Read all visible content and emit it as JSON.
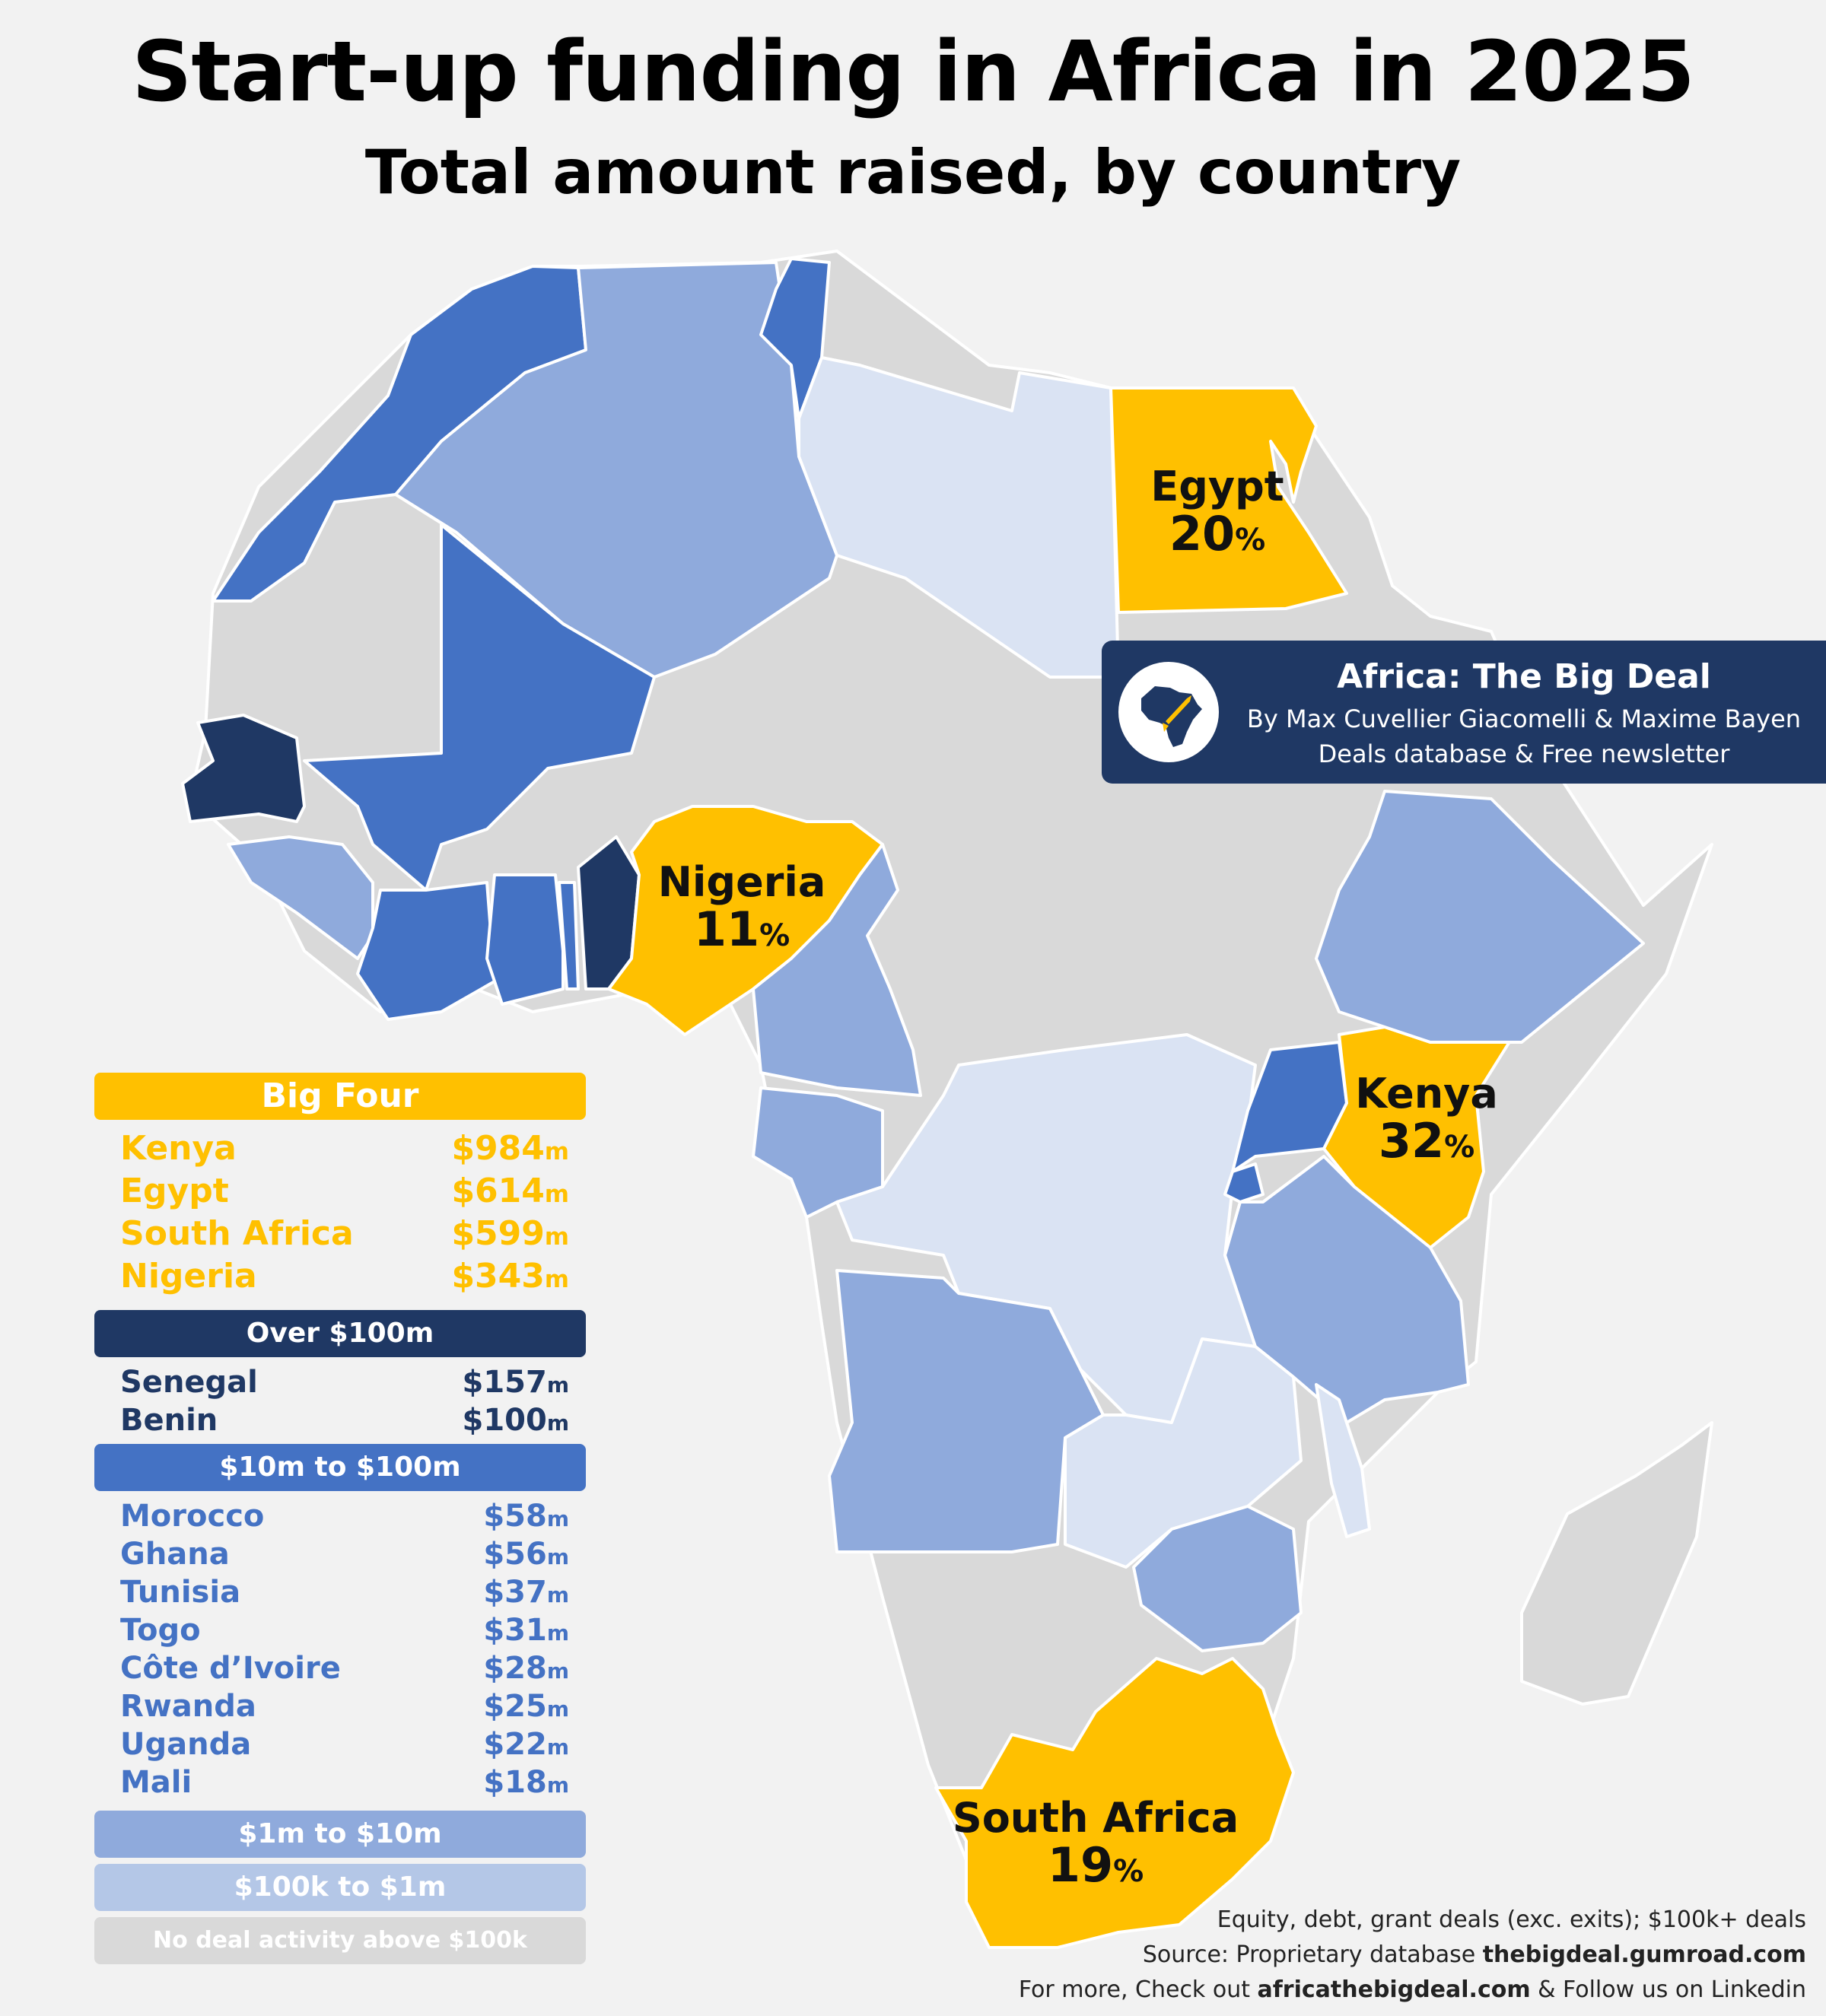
{
  "title": "Start-up funding in Africa in 2025",
  "subtitle": "Total amount raised, by country",
  "colors": {
    "big_four": "#ffc000",
    "over_100m": "#1f3864",
    "10m_100m": "#4472c4",
    "1m_10m": "#8faadc",
    "100k_1m": "#dae3f3",
    "none": "#d9d9d9",
    "background": "#f2f2f2"
  },
  "map_labels": {
    "egypt": {
      "name": "Egypt",
      "share": "20",
      "unit": "%"
    },
    "nigeria": {
      "name": "Nigeria",
      "share": "11",
      "unit": "%"
    },
    "kenya": {
      "name": "Kenya",
      "share": "32",
      "unit": "%"
    },
    "south_africa": {
      "name": "South Africa",
      "share": "19",
      "unit": "%"
    }
  },
  "brand": {
    "name": "Africa: The Big Deal",
    "authors": "By Max Cuvellier Giacomelli & Maxime Bayen",
    "tagline": "Deals database & Free newsletter",
    "logo_icon": "africa-rocket-icon"
  },
  "legend": {
    "big_four": {
      "header": "Big Four",
      "rows": [
        {
          "country": "Kenya",
          "amount": "$984",
          "unit": "m"
        },
        {
          "country": "Egypt",
          "amount": "$614",
          "unit": "m"
        },
        {
          "country": "South Africa",
          "amount": "$599",
          "unit": "m"
        },
        {
          "country": "Nigeria",
          "amount": "$343",
          "unit": "m"
        }
      ]
    },
    "over_100m": {
      "header": "Over $100m",
      "rows": [
        {
          "country": "Senegal",
          "amount": "$157",
          "unit": "m"
        },
        {
          "country": "Benin",
          "amount": "$100",
          "unit": "m"
        }
      ]
    },
    "10m_100m": {
      "header": "$10m to $100m",
      "rows": [
        {
          "country": "Morocco",
          "amount": "$58",
          "unit": "m"
        },
        {
          "country": "Ghana",
          "amount": "$56",
          "unit": "m"
        },
        {
          "country": "Tunisia",
          "amount": "$37",
          "unit": "m"
        },
        {
          "country": "Togo",
          "amount": "$31",
          "unit": "m"
        },
        {
          "country": "Côte d’Ivoire",
          "amount": "$28",
          "unit": "m"
        },
        {
          "country": "Rwanda",
          "amount": "$25",
          "unit": "m"
        },
        {
          "country": "Uganda",
          "amount": "$22",
          "unit": "m"
        },
        {
          "country": "Mali",
          "amount": "$18",
          "unit": "m"
        }
      ]
    },
    "1m_10m": {
      "header": "$1m to $10m"
    },
    "100k_1m": {
      "header": "$100k to $1m"
    },
    "none": {
      "header": "No deal activity above $100k"
    }
  },
  "footer": {
    "line1": "Equity, debt, grant deals (exc. exits); $100k+ deals",
    "line2_prefix": "Source: Proprietary database ",
    "line2_link": "thebigdeal.gumroad.com",
    "line3_prefix": "For more, Check out ",
    "line3_link": "africathebigdeal.com",
    "line3_suffix": " & Follow us on Linkedin"
  }
}
